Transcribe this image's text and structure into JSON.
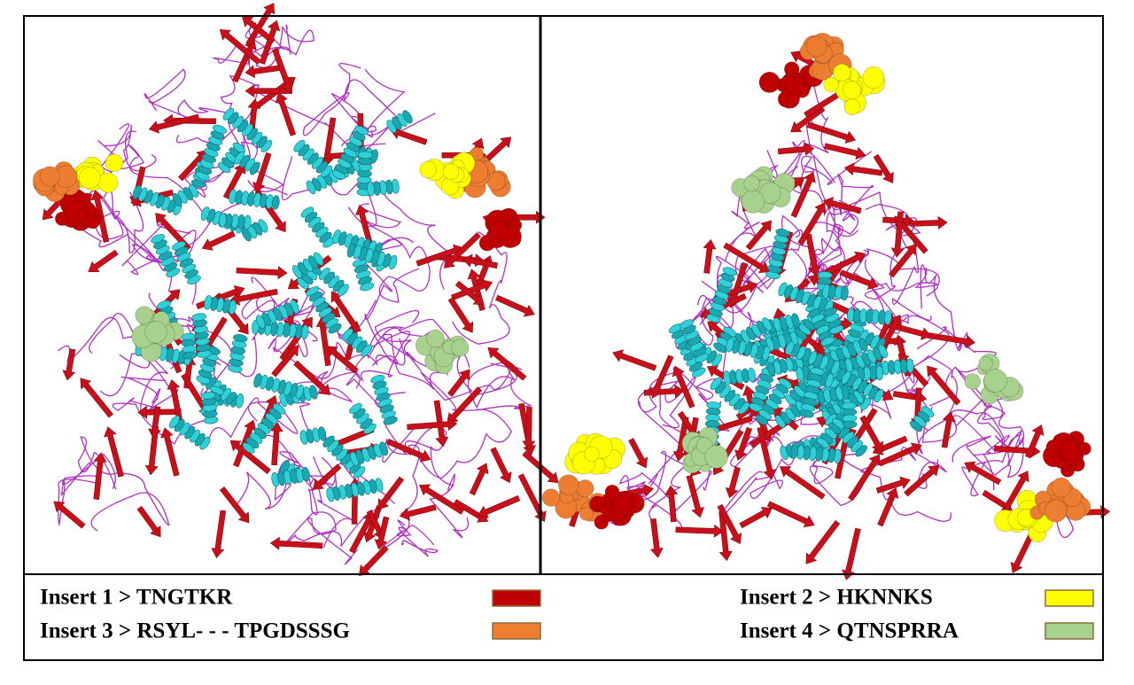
{
  "legend": {
    "items": [
      {
        "label": "Insert 1 > TNGTKR",
        "color": "#c00000"
      },
      {
        "label": "Insert 2 >  HKNNKS",
        "color": "#ffff00"
      },
      {
        "label": "Insert  3 >  RSYL- - - TPGDSSSG",
        "color": "#ed7d31"
      },
      {
        "label": "Insert 4 > QTNSPRRA",
        "color": "#a9d18e"
      }
    ]
  }
}
